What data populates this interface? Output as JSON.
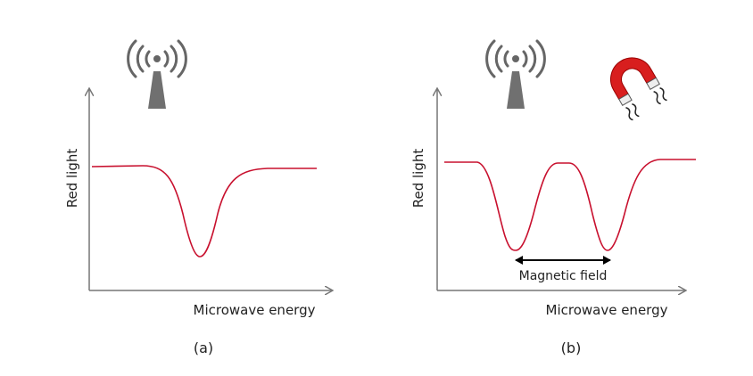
{
  "panels": [
    {
      "y_axis_label": "Red light",
      "x_axis_label": "Microwave energy",
      "caption": "(a)"
    },
    {
      "y_axis_label": "Red light",
      "x_axis_label": "Microwave energy",
      "annotation": "Magnetic field",
      "caption": "(b)"
    }
  ]
}
